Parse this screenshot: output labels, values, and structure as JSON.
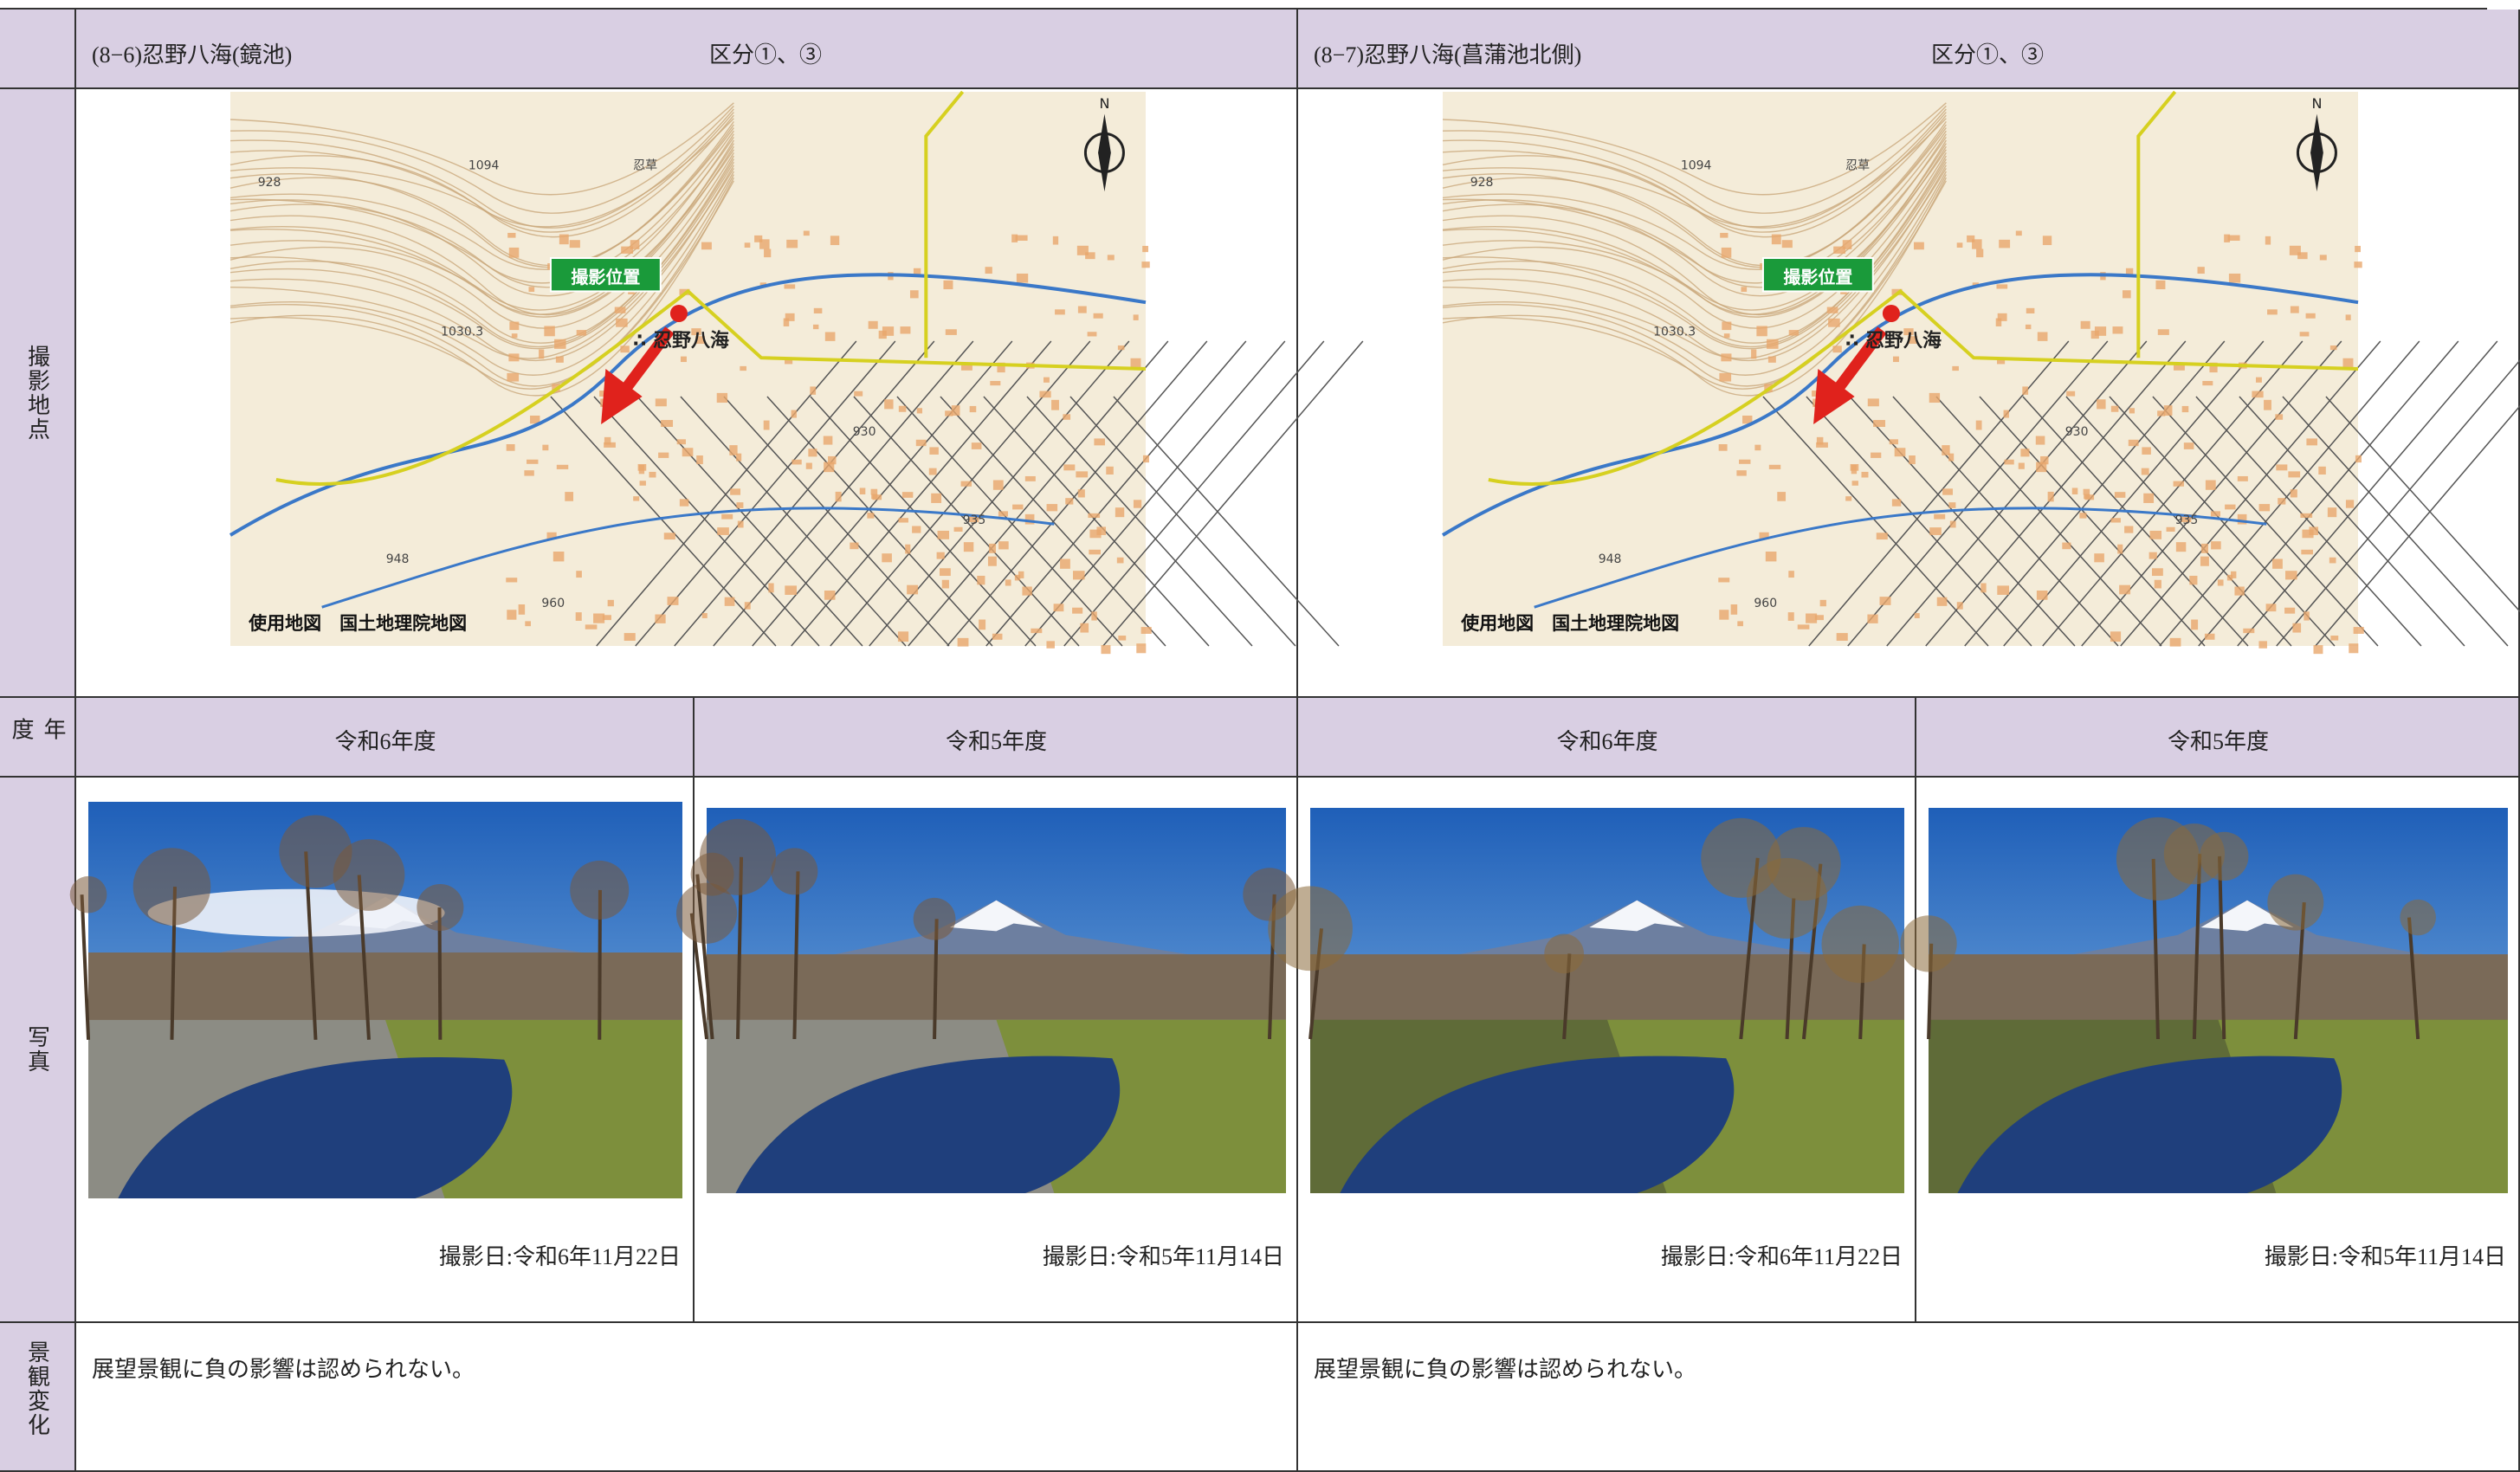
{
  "row_labels": [
    "撮影地点",
    "年度",
    "写真",
    "景観変化"
  ],
  "sites": [
    {
      "heading": "(8−6)忍野八海(鏡池)",
      "category": "区分①、③",
      "map": {
        "labels": [
          "1094",
          "928",
          "1030.3",
          "忍草",
          "930",
          "935",
          "948",
          "960"
        ],
        "north": "N",
        "marker": "撮影位置",
        "place": "∴ 忍野八海",
        "caption": "使用地図　国土地理院地図"
      },
      "years": [
        "令和6年度",
        "令和5年度"
      ],
      "photo_dates": [
        "撮影日:令和6年11月22日",
        "撮影日:令和5年11月14日"
      ],
      "remark": "展望景観に負の影響は認められない。"
    },
    {
      "heading": "(8−7)忍野八海(菖蒲池北側)",
      "category": "区分①、③",
      "map": {
        "labels": [
          "1094",
          "928",
          "1030.3",
          "忍草",
          "930",
          "935",
          "948",
          "960"
        ],
        "north": "N",
        "marker": "撮影位置",
        "place": "∴ 忍野八海",
        "caption": "使用地図　国土地理院地図"
      },
      "years": [
        "令和6年度",
        "令和5年度"
      ],
      "photo_dates": [
        "撮影日:令和6年11月22日",
        "撮影日:令和5年11月14日"
      ],
      "remark": "展望景観に負の影響は認められない。"
    }
  ]
}
